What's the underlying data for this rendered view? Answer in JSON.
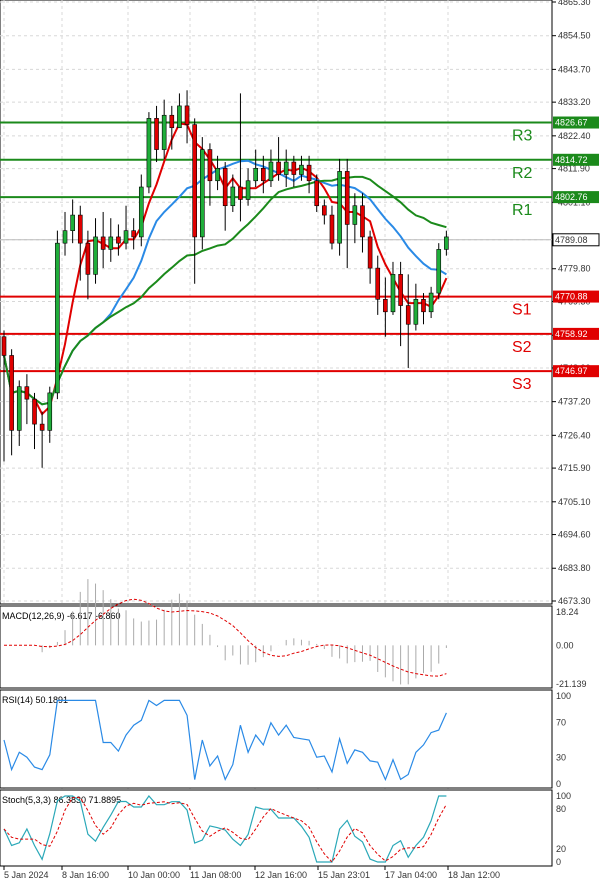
{
  "chart_data": {
    "type": "candlestick",
    "price_axis": {
      "ticks": [
        "4865.30",
        "4854.50",
        "4843.70",
        "4833.20",
        "4822.40",
        "4811.90",
        "4801.10",
        "4789.08",
        "4779.80",
        "4769.30",
        "4758.50",
        "4748.00",
        "4737.20",
        "4726.40",
        "4715.90",
        "4705.10",
        "4694.60",
        "4683.80",
        "4673.30"
      ],
      "ylim": [
        4673.3,
        4865.3
      ]
    },
    "time_axis": {
      "ticks": [
        "5 Jan 2024",
        "8 Jan 16:00",
        "10 Jan 00:00",
        "11 Jan 08:00",
        "12 Jan 16:00",
        "15 Jan 23:01",
        "17 Jan 04:00",
        "18 Jan 12:00"
      ]
    },
    "levels": [
      {
        "name": "R3",
        "value": "4826.67",
        "color": "#1b8a1b"
      },
      {
        "name": "R2",
        "value": "4814.72",
        "color": "#1b8a1b"
      },
      {
        "name": "R1",
        "value": "4802.76",
        "color": "#1b8a1b"
      },
      {
        "name": "S1",
        "value": "4770.88",
        "color": "#e00000"
      },
      {
        "name": "S2",
        "value": "4758.92",
        "color": "#e00000"
      },
      {
        "name": "S3",
        "value": "4746.97",
        "color": "#e00000"
      }
    ],
    "current_price": "4789.08",
    "candles": [
      [
        4758,
        4752,
        4760,
        4718
      ],
      [
        4752,
        4728,
        4754,
        4720
      ],
      [
        4728,
        4742,
        4744,
        4723
      ],
      [
        4742,
        4738,
        4746,
        4730
      ],
      [
        4738,
        4730,
        4740,
        4722
      ],
      [
        4730,
        4728,
        4734,
        4716
      ],
      [
        4728,
        4740,
        4742,
        4724
      ],
      [
        4740,
        4788,
        4792,
        4738
      ],
      [
        4788,
        4792,
        4798,
        4784
      ],
      [
        4792,
        4797,
        4802,
        4788
      ],
      [
        4797,
        4788,
        4800,
        4776
      ],
      [
        4788,
        4778,
        4792,
        4770
      ],
      [
        4778,
        4790,
        4796,
        4775
      ],
      [
        4790,
        4786,
        4798,
        4780
      ],
      [
        4786,
        4790,
        4796,
        4782
      ],
      [
        4790,
        4788,
        4794,
        4784
      ],
      [
        4788,
        4792,
        4800,
        4786
      ],
      [
        4792,
        4790,
        4796,
        4786
      ],
      [
        4790,
        4806,
        4810,
        4787
      ],
      [
        4806,
        4828,
        4830,
        4804
      ],
      [
        4828,
        4818,
        4832,
        4814
      ],
      [
        4818,
        4829,
        4834,
        4815
      ],
      [
        4829,
        4825,
        4832,
        4818
      ],
      [
        4825,
        4832,
        4836,
        4826
      ],
      [
        4832,
        4826,
        4837,
        4820
      ],
      [
        4826,
        4790,
        4828,
        4775
      ],
      [
        4790,
        4818,
        4822,
        4786
      ],
      [
        4818,
        4808,
        4820,
        4800
      ],
      [
        4808,
        4812,
        4816,
        4805
      ],
      [
        4812,
        4800,
        4814,
        4792
      ],
      [
        4800,
        4806,
        4810,
        4798
      ],
      [
        4806,
        4802,
        4836,
        4795
      ],
      [
        4802,
        4808,
        4812,
        4800
      ],
      [
        4808,
        4812,
        4818,
        4806
      ],
      [
        4812,
        4808,
        4816,
        4804
      ],
      [
        4808,
        4814,
        4818,
        4806
      ],
      [
        4814,
        4810,
        4822,
        4808
      ],
      [
        4810,
        4814,
        4818,
        4806
      ],
      [
        4814,
        4810,
        4816,
        4806
      ],
      [
        4810,
        4813,
        4816,
        4808
      ],
      [
        4813,
        4808,
        4816,
        4804
      ],
      [
        4808,
        4800,
        4810,
        4798
      ],
      [
        4800,
        4797,
        4802,
        4794
      ],
      [
        4797,
        4788,
        4800,
        4786
      ],
      [
        4788,
        4811,
        4815,
        4784
      ],
      [
        4811,
        4794,
        4815,
        4780
      ],
      [
        4794,
        4800,
        4804,
        4788
      ],
      [
        4800,
        4790,
        4804,
        4785
      ],
      [
        4790,
        4780,
        4792,
        4775
      ],
      [
        4780,
        4770,
        4784,
        4765
      ],
      [
        4770,
        4766,
        4777,
        4758
      ],
      [
        4766,
        4778,
        4782,
        4765
      ],
      [
        4778,
        4768,
        4782,
        4755
      ],
      [
        4768,
        4762,
        4778,
        4748
      ],
      [
        4762,
        4770,
        4775,
        4760
      ],
      [
        4770,
        4766,
        4772,
        4762
      ],
      [
        4766,
        4772,
        4774,
        4764
      ],
      [
        4772,
        4786,
        4788,
        4770
      ],
      [
        4786,
        4790,
        4792,
        4784
      ]
    ],
    "macd": {
      "label": "MACD(12,26,9) -6.617 -6.860",
      "ticks": [
        "18.24",
        "0.00",
        "-21.139"
      ]
    },
    "rsi": {
      "label": "RSI(14) 50.1891",
      "ticks": [
        "100",
        "70",
        "30",
        "0"
      ]
    },
    "stoch": {
      "label": "Stoch(5,3,3) 86.3830 71.8895",
      "ticks": [
        "100",
        "80",
        "20",
        "0"
      ]
    }
  }
}
